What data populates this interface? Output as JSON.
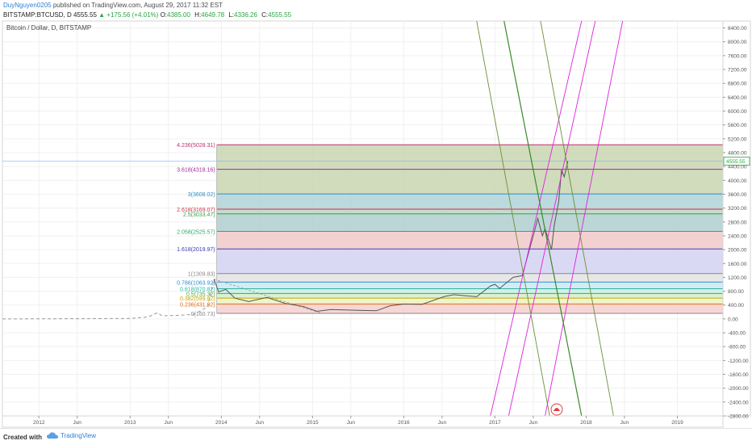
{
  "header": {
    "author": "DuyNguyen0205",
    "published": "published on TradingView.com, August 29, 2017 11:32 EST",
    "symbol": "BITSTAMP:BTCUSD, D",
    "last": "4555.55",
    "change": "▲ +175.56 (+4.01%)",
    "open_label": "O:",
    "open": "4385.00",
    "high_label": "H:",
    "high": "4649.78",
    "low_label": "L:",
    "low": "4336.26",
    "close_label": "C:",
    "close": "4555.55"
  },
  "footer": {
    "created_with": "Created with",
    "brand": "TradingView"
  },
  "colors": {
    "green": "#26a641",
    "blue_link": "#2f7fd6",
    "magenta": "#e020e0",
    "dark_green": "#3a8a2a",
    "olive": "#6b8f3a",
    "price_line": "#777777"
  },
  "chart_data": {
    "type": "line",
    "title": "Bitcoin / Dollar, D, BITSTAMP",
    "ylim": [
      -2800,
      8600
    ],
    "xlim": [
      2011.6,
      2019.5
    ],
    "y_ticks": [
      "8400.00",
      "8000.00",
      "7600.00",
      "7200.00",
      "6800.00",
      "6400.00",
      "6000.00",
      "5600.00",
      "5200.00",
      "4800.00",
      "4400.00",
      "4000.00",
      "3600.00",
      "3200.00",
      "2800.00",
      "2400.00",
      "2000.00",
      "1600.00",
      "1200.00",
      "800.00",
      "400.00",
      "0.00",
      "-400.00",
      "-800.00",
      "-1200.00",
      "-1600.00",
      "-2000.00",
      "-2400.00",
      "-2800.00"
    ],
    "x_ticks": [
      {
        "label": "2012",
        "x": 2012.0
      },
      {
        "label": "Jun",
        "x": 2012.42
      },
      {
        "label": "2013",
        "x": 2013.0
      },
      {
        "label": "Jun",
        "x": 2013.42
      },
      {
        "label": "2014",
        "x": 2014.0
      },
      {
        "label": "Jun",
        "x": 2014.42
      },
      {
        "label": "2015",
        "x": 2015.0
      },
      {
        "label": "Jun",
        "x": 2015.42
      },
      {
        "label": "2016",
        "x": 2016.0
      },
      {
        "label": "Jun",
        "x": 2016.42
      },
      {
        "label": "2017",
        "x": 2017.0
      },
      {
        "label": "Jun",
        "x": 2017.42
      },
      {
        "label": "2018",
        "x": 2018.0
      },
      {
        "label": "Jun",
        "x": 2018.42
      },
      {
        "label": "2019",
        "x": 2019.0
      }
    ],
    "last_price_label": "4555.55",
    "last_price": 4555.55,
    "fib_extension": {
      "x_start": 2013.95,
      "x_end": 2019.5,
      "levels": [
        {
          "label": "4.236(5028.31)",
          "value": 5028.31,
          "color": "#c0306e",
          "fill": "#c8d6b0"
        },
        {
          "label": "3.618(4318.16)",
          "value": 4318.16,
          "color": "#9c2f9c",
          "fill": "#c8d6b0"
        },
        {
          "label": "3(3608.02)",
          "value": 3608.02,
          "color": "#2d8fc2",
          "fill": "#b0d2d8"
        },
        {
          "label": "2.618(3169.07)",
          "value": 3169.07,
          "color": "#d0304a",
          "fill": "#b8d6c4"
        },
        {
          "label": "2.5(3033.47)",
          "value": 3033.47,
          "color": "#3aa048",
          "fill": "#b0cfcf"
        },
        {
          "label": "2.058(2525.57)",
          "value": 2525.57,
          "color": "#2ea870",
          "fill": "#f2c9c9"
        },
        {
          "label": "1.618(2019.97)",
          "value": 2019.97,
          "color": "#4040b8",
          "fill": "#d4d2f2"
        },
        {
          "label": "1(1309.83)",
          "value": 1309.83,
          "color": "#888888",
          "fill": "#e4e4e4"
        },
        {
          "label": "0.786(1063.92)",
          "value": 1063.92,
          "color": "#2b8fd4",
          "fill": "#cde8f2"
        },
        {
          "label": "0.618(870.82)",
          "value": 870.82,
          "color": "#2eb4a0",
          "fill": "#c9efe2"
        },
        {
          "label": "0.5(735.32)",
          "value": 735.32,
          "color": "#3fb040",
          "fill": "#d2f0cd"
        },
        {
          "label": "0.382(599.82)",
          "value": 599.82,
          "color": "#c4a600",
          "fill": "#eef2c2"
        },
        {
          "label": "0.236(431.92)",
          "value": 431.92,
          "color": "#e0701a",
          "fill": "#f6cfcf"
        },
        {
          "label": "0(160.73)",
          "value": 160.73,
          "color": "#888888",
          "fill": null
        }
      ]
    },
    "price_series": [
      [
        2011.6,
        0
      ],
      [
        2011.9,
        3
      ],
      [
        2012.2,
        5
      ],
      [
        2012.5,
        7
      ],
      [
        2012.8,
        11
      ],
      [
        2013.0,
        14
      ],
      [
        2013.2,
        60
      ],
      [
        2013.3,
        180
      ],
      [
        2013.35,
        90
      ],
      [
        2013.5,
        100
      ],
      [
        2013.7,
        130
      ],
      [
        2013.85,
        350
      ],
      [
        2013.92,
        1150
      ],
      [
        2013.97,
        780
      ],
      [
        2014.05,
        850
      ],
      [
        2014.15,
        600
      ],
      [
        2014.3,
        500
      ],
      [
        2014.5,
        620
      ],
      [
        2014.7,
        450
      ],
      [
        2014.9,
        360
      ],
      [
        2015.05,
        220
      ],
      [
        2015.2,
        270
      ],
      [
        2015.5,
        250
      ],
      [
        2015.7,
        235
      ],
      [
        2015.85,
        380
      ],
      [
        2016.0,
        430
      ],
      [
        2016.2,
        420
      ],
      [
        2016.45,
        650
      ],
      [
        2016.55,
        700
      ],
      [
        2016.8,
        640
      ],
      [
        2016.95,
        950
      ],
      [
        2017.0,
        1000
      ],
      [
        2017.05,
        880
      ],
      [
        2017.2,
        1200
      ],
      [
        2017.3,
        1250
      ],
      [
        2017.42,
        2400
      ],
      [
        2017.47,
        2900
      ],
      [
        2017.52,
        2400
      ],
      [
        2017.55,
        2600
      ],
      [
        2017.62,
        2000
      ],
      [
        2017.65,
        2700
      ],
      [
        2017.7,
        3400
      ],
      [
        2017.73,
        4300
      ],
      [
        2017.76,
        4100
      ],
      [
        2017.8,
        4555.55
      ]
    ],
    "trend_lines": [
      {
        "name": "magenta",
        "color": "#e020e0",
        "points": [
          [
            2017.15,
            -2800
          ],
          [
            2018.1,
            8600
          ]
        ]
      },
      {
        "name": "magenta",
        "color": "#e020e0",
        "points": [
          [
            2016.95,
            -2800
          ],
          [
            2017.95,
            8600
          ]
        ]
      },
      {
        "name": "magenta",
        "color": "#e020e0",
        "points": [
          [
            2017.55,
            -2800
          ],
          [
            2018.4,
            8600
          ]
        ]
      },
      {
        "name": "dark-green",
        "color": "#3a8a2a",
        "points": [
          [
            2017.1,
            8600
          ],
          [
            2017.95,
            -2800
          ]
        ]
      },
      {
        "name": "olive",
        "color": "#6b8f3a",
        "points": [
          [
            2016.8,
            8600
          ],
          [
            2017.6,
            -2800
          ]
        ]
      },
      {
        "name": "olive",
        "color": "#6b8f3a",
        "points": [
          [
            2017.5,
            8600
          ],
          [
            2018.3,
            -2800
          ]
        ]
      }
    ]
  }
}
